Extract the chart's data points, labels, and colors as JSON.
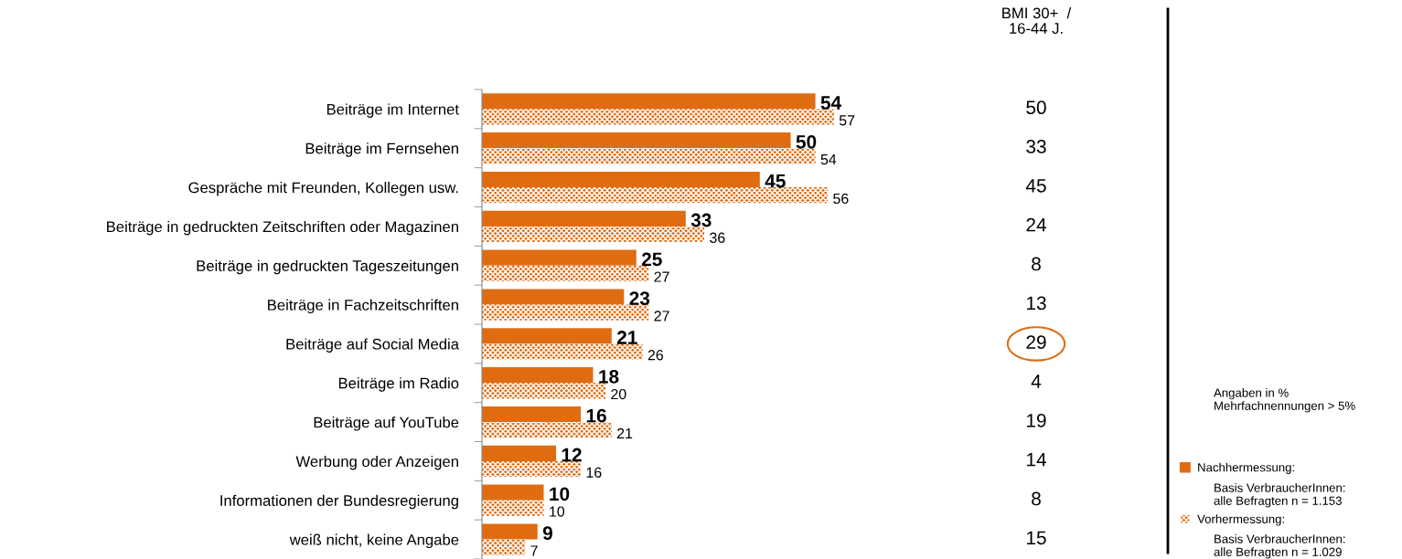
{
  "chart_data": [
    {
      "type": "bar",
      "orientation": "horizontal",
      "data_labels": true,
      "legend": "right",
      "grid": false,
      "categories": [
        "Beiträge im Internet",
        "Beiträge im Fernsehen",
        "Gespräche mit Freunden, Kollegen usw.",
        "Beiträge in gedruckten Zeitschriften oder Magazinen",
        "Beiträge in gedruckten Tageszeitungen",
        "Beiträge in Fachzeitschriften",
        "Beiträge auf Social Media",
        "Beiträge im Radio",
        "Beiträge auf YouTube",
        "Werbung oder Anzeigen",
        "Informationen der Bundesregierung",
        "weiß nicht, keine Angabe"
      ],
      "series": [
        {
          "name": "Nachhermessung:",
          "color": "#e06c12",
          "values": [
            54,
            50,
            45,
            33,
            25,
            23,
            21,
            18,
            16,
            12,
            10,
            9
          ]
        },
        {
          "name": "Vorhermessung:",
          "color": "#e06c12",
          "values": [
            57,
            54,
            56,
            36,
            27,
            27,
            26,
            20,
            21,
            16,
            10,
            7
          ]
        }
      ],
      "annotations": [
        "Angaben in %\nMehrfachnennungen > 5%",
        "Basis VerbraucherInnen:\nalle Befragten n = 1.153",
        "Basis VerbraucherInnen:\nalle Befragten n = 1.029"
      ]
    },
    {
      "type": "other",
      "title": "BMI 30+  /\n16-44 J.",
      "data_labels": true,
      "categories": [
        null,
        null,
        null,
        null,
        null,
        null,
        null,
        null,
        null,
        null,
        null,
        null
      ],
      "values": [
        50,
        33,
        45,
        24,
        8,
        13,
        29,
        4,
        19,
        14,
        8,
        15
      ]
    }
  ]
}
